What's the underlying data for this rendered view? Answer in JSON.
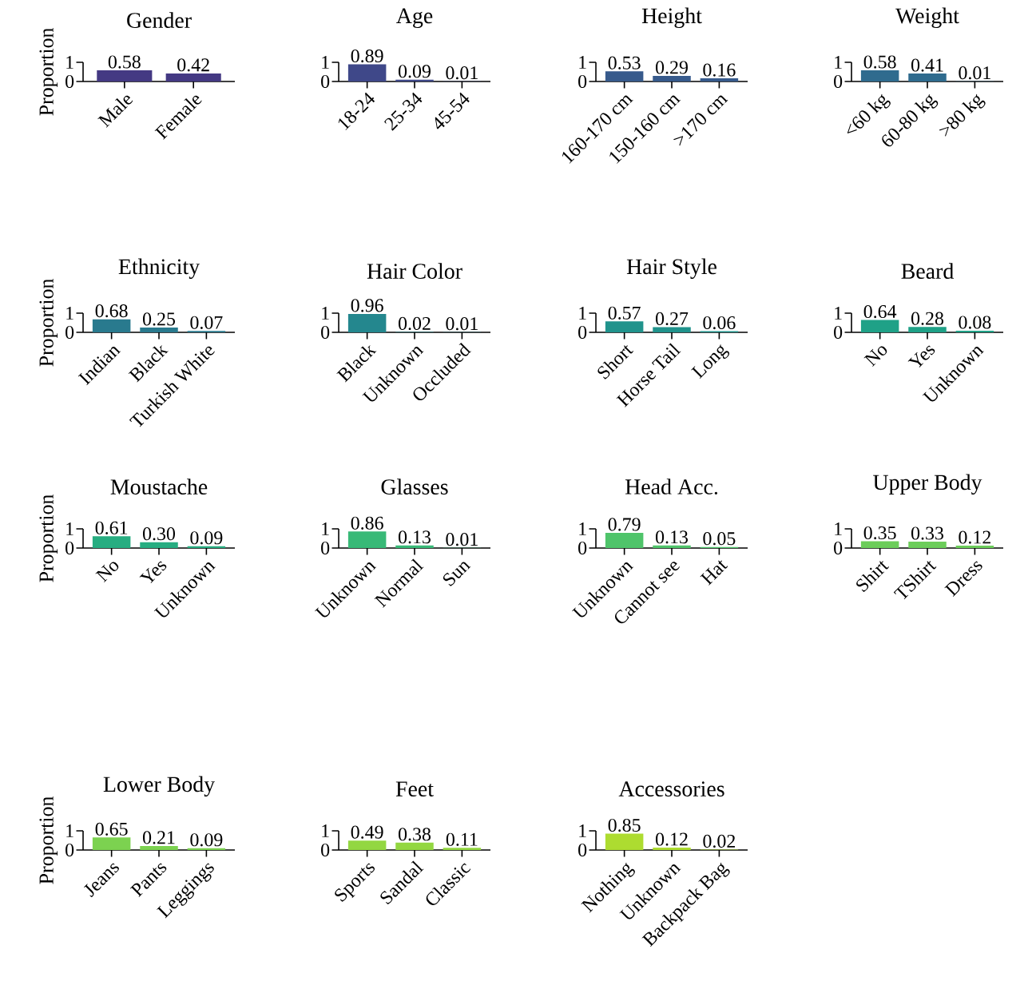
{
  "chart_data": [
    {
      "type": "bar",
      "title": "Gender",
      "ylabel": "Proportion",
      "categories": [
        "Male",
        "Female"
      ],
      "values": [
        0.58,
        0.42
      ],
      "value_labels": [
        "0.58",
        "0.42"
      ],
      "color": "#443983",
      "ylim": [
        0,
        1
      ],
      "yticks": [
        0,
        1
      ]
    },
    {
      "type": "bar",
      "title": "Age",
      "categories": [
        "18-24",
        "25-34",
        "45-54"
      ],
      "values": [
        0.89,
        0.09,
        0.01
      ],
      "value_labels": [
        "0.89",
        "0.09",
        "0.01"
      ],
      "color": "#3f4889",
      "ylim": [
        0,
        1
      ],
      "yticks": [
        0,
        1
      ]
    },
    {
      "type": "bar",
      "title": "Height",
      "categories": [
        "160-170 cm",
        "150-160 cm",
        ">170 cm"
      ],
      "values": [
        0.53,
        0.29,
        0.16
      ],
      "value_labels": [
        "0.53",
        "0.29",
        "0.16"
      ],
      "color": "#375a8c",
      "ylim": [
        0,
        1
      ],
      "yticks": [
        0,
        1
      ]
    },
    {
      "type": "bar",
      "title": "Weight",
      "categories": [
        "<60 kg",
        "60-80 kg",
        ">80 kg"
      ],
      "values": [
        0.58,
        0.41,
        0.01
      ],
      "value_labels": [
        "0.58",
        "0.41",
        "0.01"
      ],
      "color": "#2f6b8e",
      "ylim": [
        0,
        1
      ],
      "yticks": [
        0,
        1
      ]
    },
    {
      "type": "bar",
      "title": "Ethnicity",
      "ylabel": "Proportion",
      "categories": [
        "Indian",
        "Black",
        "Turkish White"
      ],
      "values": [
        0.68,
        0.25,
        0.07
      ],
      "value_labels": [
        "0.68",
        "0.25",
        "0.07"
      ],
      "color": "#297a8e",
      "ylim": [
        0,
        1
      ],
      "yticks": [
        0,
        1
      ]
    },
    {
      "type": "bar",
      "title": "Hair Color",
      "categories": [
        "Black",
        "Unknown",
        "Occluded"
      ],
      "values": [
        0.96,
        0.02,
        0.01
      ],
      "value_labels": [
        "0.96",
        "0.02",
        "0.01"
      ],
      "color": "#24878e",
      "ylim": [
        0,
        1
      ],
      "yticks": [
        0,
        1
      ]
    },
    {
      "type": "bar",
      "title": "Hair Style",
      "categories": [
        "Short",
        "Horse Tail",
        "Long"
      ],
      "values": [
        0.57,
        0.27,
        0.06
      ],
      "value_labels": [
        "0.57",
        "0.27",
        "0.06"
      ],
      "color": "#20938c",
      "ylim": [
        0,
        1
      ],
      "yticks": [
        0,
        1
      ]
    },
    {
      "type": "bar",
      "title": "Beard",
      "categories": [
        "No",
        "Yes",
        "Unknown"
      ],
      "values": [
        0.64,
        0.28,
        0.08
      ],
      "value_labels": [
        "0.64",
        "0.28",
        "0.08"
      ],
      "color": "#1fa187",
      "ylim": [
        0,
        1
      ],
      "yticks": [
        0,
        1
      ]
    },
    {
      "type": "bar",
      "title": "Moustache",
      "ylabel": "Proportion",
      "categories": [
        "No",
        "Yes",
        "Unknown"
      ],
      "values": [
        0.61,
        0.3,
        0.09
      ],
      "value_labels": [
        "0.61",
        "0.30",
        "0.09"
      ],
      "color": "#27ad81",
      "ylim": [
        0,
        1
      ],
      "yticks": [
        0,
        1
      ]
    },
    {
      "type": "bar",
      "title": "Glasses",
      "categories": [
        "Unknown",
        "Normal",
        "Sun"
      ],
      "values": [
        0.86,
        0.13,
        0.01
      ],
      "value_labels": [
        "0.86",
        "0.13",
        "0.01"
      ],
      "color": "#38b977",
      "ylim": [
        0,
        1
      ],
      "yticks": [
        0,
        1
      ]
    },
    {
      "type": "bar",
      "title": "Head Acc.",
      "categories": [
        "Unknown",
        "Cannot see",
        "Hat"
      ],
      "values": [
        0.79,
        0.13,
        0.05
      ],
      "value_labels": [
        "0.79",
        "0.13",
        "0.05"
      ],
      "color": "#4fc46a",
      "ylim": [
        0,
        1
      ],
      "yticks": [
        0,
        1
      ]
    },
    {
      "type": "bar",
      "title": "Upper Body",
      "categories": [
        "Shirt",
        "TShirt",
        "Dress"
      ],
      "values": [
        0.35,
        0.33,
        0.12
      ],
      "value_labels": [
        "0.35",
        "0.33",
        "0.12"
      ],
      "color": "#6ccd5a",
      "ylim": [
        0,
        1
      ],
      "yticks": [
        0,
        1
      ]
    },
    {
      "type": "bar",
      "title": "Lower Body",
      "ylabel": "Proportion",
      "categories": [
        "Jeans",
        "Pants",
        "Leggings"
      ],
      "values": [
        0.65,
        0.21,
        0.09
      ],
      "value_labels": [
        "0.65",
        "0.21",
        "0.09"
      ],
      "color": "#7cd250",
      "ylim": [
        0,
        1
      ],
      "yticks": [
        0,
        1
      ]
    },
    {
      "type": "bar",
      "title": "Feet",
      "categories": [
        "Sports",
        "Sandal",
        "Classic"
      ],
      "values": [
        0.49,
        0.38,
        0.11
      ],
      "value_labels": [
        "0.49",
        "0.38",
        "0.11"
      ],
      "color": "#93d741",
      "ylim": [
        0,
        1
      ],
      "yticks": [
        0,
        1
      ]
    },
    {
      "type": "bar",
      "title": "Accessories",
      "categories": [
        "Nothing",
        "Unknown",
        "Backpack Bag"
      ],
      "values": [
        0.85,
        0.12,
        0.02
      ],
      "value_labels": [
        "0.85",
        "0.12",
        "0.02"
      ],
      "color": "#addc30",
      "ylim": [
        0,
        1
      ],
      "yticks": [
        0,
        1
      ]
    }
  ]
}
